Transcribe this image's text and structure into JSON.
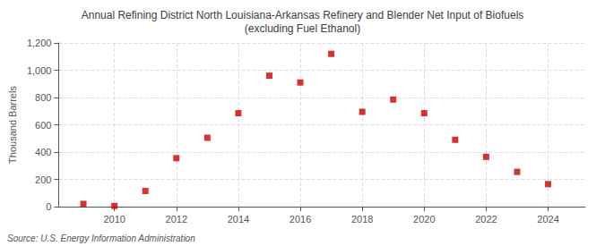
{
  "chart_data": {
    "type": "scatter",
    "title": "Annual Refining District North Louisiana-Arkansas Refinery and Blender Net Input of Biofuels\n(excluding Fuel Ethanol)",
    "ylabel": "Thousand Barrels",
    "annotation": "Source: U.S. Energy Information Administration",
    "x": [
      2009,
      2010,
      2011,
      2012,
      2013,
      2014,
      2015,
      2016,
      2017,
      2018,
      2019,
      2020,
      2021,
      2022,
      2023,
      2024
    ],
    "values": [
      20,
      5,
      115,
      355,
      505,
      685,
      960,
      910,
      1120,
      695,
      785,
      685,
      490,
      365,
      255,
      165
    ],
    "color": "#cc0000",
    "marker": "square",
    "xlim": [
      2008.2,
      2025.2
    ],
    "xticks": [
      2010,
      2012,
      2014,
      2016,
      2018,
      2020,
      2022,
      2024
    ],
    "ylim": [
      0,
      1200
    ],
    "yticks": [
      0,
      200,
      400,
      600,
      {
        "value": 800,
        "label": "800"
      },
      {
        "value": 1000,
        "label": "1,000"
      },
      {
        "value": 1200,
        "label": "1,200"
      }
    ],
    "grid": true
  }
}
